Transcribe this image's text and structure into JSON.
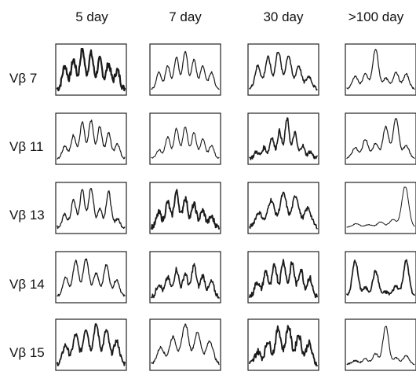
{
  "columns": [
    "5 day",
    "7 day",
    "30 day",
    ">100 day"
  ],
  "rows": [
    "Vβ 7",
    "Vβ 11",
    "Vβ 13",
    "Vβ 14",
    "Vβ 15"
  ],
  "panels": [
    [
      {
        "peaks": [
          0.55,
          0.7,
          0.95,
          0.85,
          0.7,
          0.6,
          0.45
        ],
        "texture": 0.08,
        "line": 2.2
      },
      {
        "peaks": [
          0.3,
          0.55,
          0.85,
          0.9,
          0.75,
          0.6,
          0.35
        ],
        "texture": 0.03,
        "line": 1.2
      },
      {
        "peaks": [
          0.3,
          0.65,
          0.9,
          0.95,
          0.45,
          0.85,
          0.2
        ],
        "texture": 0.04,
        "line": 1.3
      },
      {
        "peaks": [
          0.45,
          0.85,
          0.9,
          0.55,
          0.75,
          0.4
        ],
        "texture": 0.03,
        "line": 1.3
      },
      {
        "peaks": [
          0.45,
          0.7,
          0.85,
          0.95,
          0.8,
          0.55
        ],
        "texture": 0.06,
        "line": 1.8
      }
    ],
    [
      {
        "peaks": [
          0.4,
          0.55,
          0.75,
          0.9,
          0.7,
          0.55,
          0.4
        ],
        "texture": 0.02,
        "line": 1.2
      },
      {
        "peaks": [
          0.2,
          0.5,
          0.7,
          0.75,
          0.6,
          0.45,
          0.3
        ],
        "texture": 0.02,
        "line": 1.1
      },
      {
        "peaks": [
          0.35,
          0.6,
          0.85,
          0.7,
          0.55,
          0.4,
          0.25
        ],
        "texture": 0.07,
        "line": 1.9
      },
      {
        "peaks": [
          0.3,
          0.45,
          0.65,
          0.55,
          0.75,
          0.5,
          0.35
        ],
        "texture": 0.06,
        "line": 1.6
      },
      {
        "peaks": [
          0.4,
          0.65,
          0.95,
          0.75,
          0.55
        ],
        "texture": 0.03,
        "line": 1.2
      }
    ],
    [
      {
        "peaks": [
          0.55,
          0.75,
          0.9,
          0.8,
          0.55,
          0.3
        ],
        "texture": 0.04,
        "line": 1.5
      },
      {
        "peaks": [
          0.15,
          0.25,
          0.5,
          0.65,
          0.95,
          0.6,
          0.3,
          0.15
        ],
        "texture": 0.05,
        "line": 1.6
      },
      {
        "peaks": [
          0.35,
          0.65,
          0.8,
          0.75,
          0.45
        ],
        "texture": 0.05,
        "line": 1.6
      },
      {
        "peaks": [
          0.35,
          0.6,
          0.75,
          0.85,
          0.8,
          0.65,
          0.45
        ],
        "texture": 0.07,
        "line": 1.8
      },
      {
        "peaks": [
          0.3,
          0.55,
          0.85,
          0.9,
          0.7,
          0.5
        ],
        "texture": 0.08,
        "line": 1.9
      }
    ],
    [
      {
        "peaks": [
          0.3,
          0.35,
          0.95,
          0.25,
          0.4,
          0.35
        ],
        "texture": 0.02,
        "line": 1.2
      },
      {
        "peaks": [
          0.25,
          0.45,
          0.35,
          0.75,
          0.95,
          0.3
        ],
        "texture": 0.02,
        "line": 1.2
      },
      {
        "peaks": [
          0.08,
          0.06,
          0.12,
          0.18,
          0.98
        ],
        "texture": 0.01,
        "line": 1.0
      },
      {
        "peaks": [
          0.85,
          0.2,
          0.6,
          0.1,
          0.25,
          0.85
        ],
        "texture": 0.04,
        "line": 1.7
      },
      {
        "peaks": [
          0.08,
          0.12,
          0.25,
          0.9,
          0.15,
          0.2
        ],
        "texture": 0.02,
        "line": 1.1
      }
    ]
  ]
}
